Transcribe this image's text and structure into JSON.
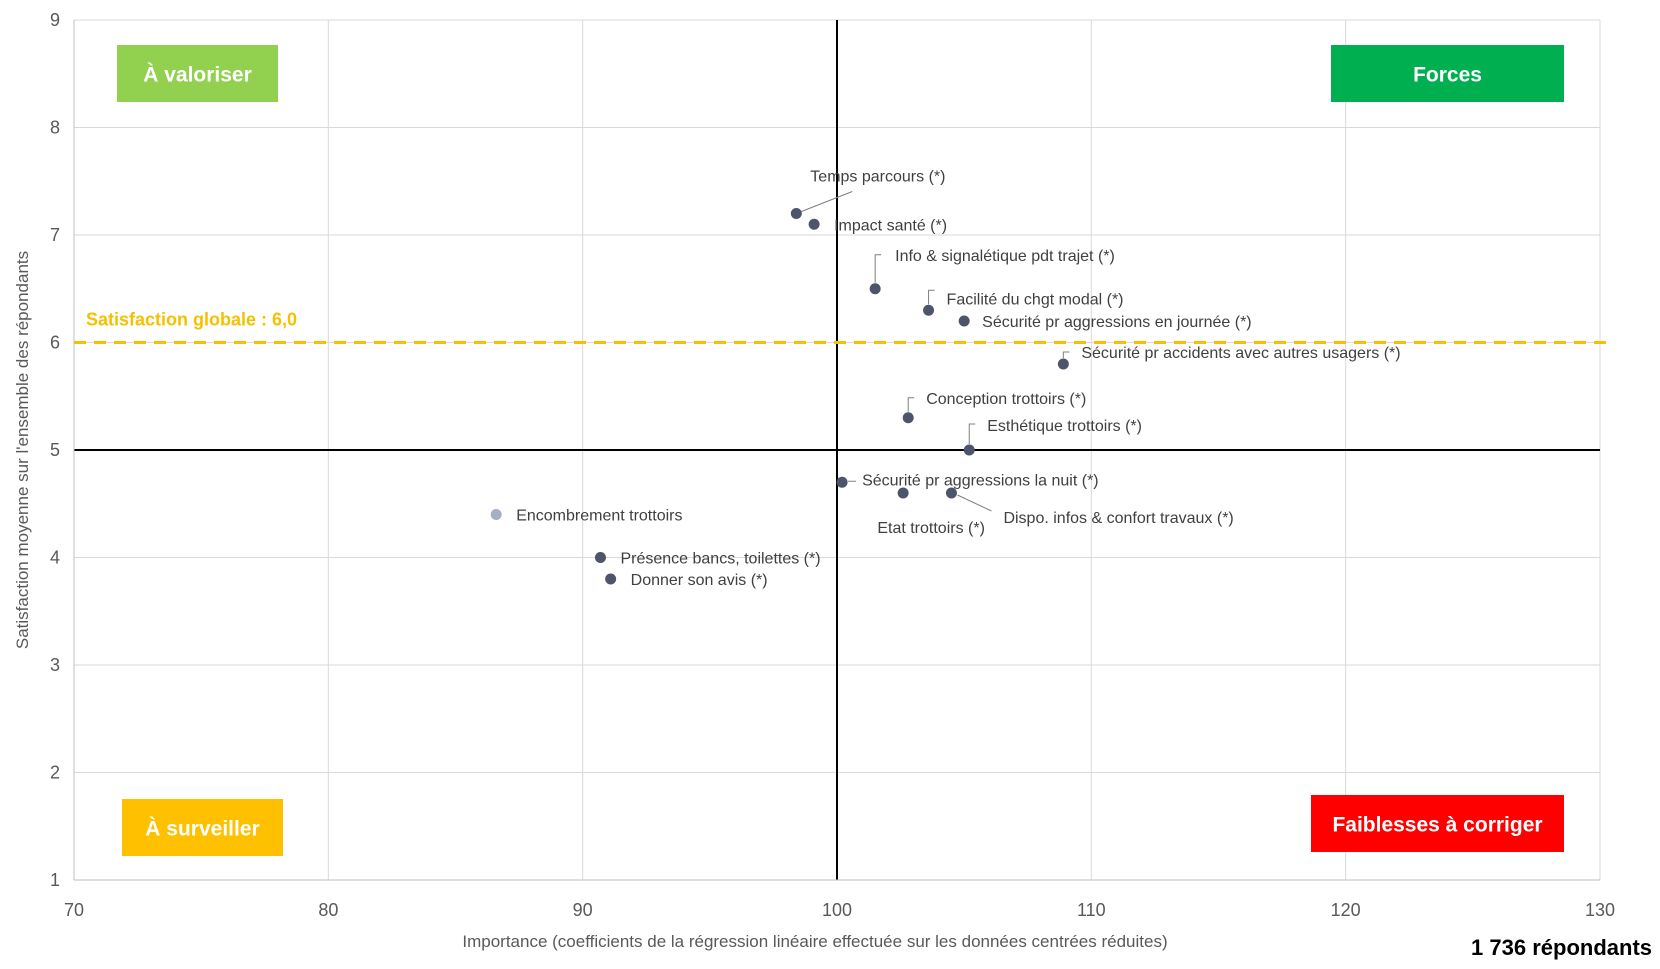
{
  "chart_data": {
    "type": "scatter",
    "xlabel": "Importance (coefficients de la régression linéaire effectuée sur les données centrées réduites)",
    "ylabel": "Satisfaction moyenne sur l'ensemble des répondants",
    "xlim": [
      70,
      130
    ],
    "ylim": [
      1,
      9
    ],
    "x_ticks": [
      "70",
      "80",
      "90",
      "100",
      "110",
      "120",
      "130"
    ],
    "y_ticks": [
      "1",
      "2",
      "3",
      "4",
      "5",
      "6",
      "7",
      "8",
      "9"
    ],
    "grid": true,
    "vertical_divider_x": 100,
    "horizontal_divider_y": 5,
    "reference_line": {
      "y": 6.0,
      "label": "Satisfaction globale : 6,0",
      "color": "#f5c000"
    },
    "point_color": "#4d546b",
    "highlight_point_color": "#a5b0c2",
    "points": [
      {
        "label": "Temps parcours (*)",
        "x": 98.4,
        "y": 7.2
      },
      {
        "label": "Impact santé (*)",
        "x": 99.1,
        "y": 7.1
      },
      {
        "label": "Info & signalétique pdt trajet  (*)",
        "x": 101.5,
        "y": 6.5
      },
      {
        "label": "Facilité du chgt modal (*)",
        "x": 103.6,
        "y": 6.3
      },
      {
        "label": "Sécurité pr aggressions en journée (*)",
        "x": 105.0,
        "y": 6.2
      },
      {
        "label": "Sécurité pr accidents avec autres usagers (*)",
        "x": 108.9,
        "y": 5.8
      },
      {
        "label": "Conception trottoirs (*)",
        "x": 102.8,
        "y": 5.3
      },
      {
        "label": "Esthétique trottoirs (*)",
        "x": 105.2,
        "y": 5.0
      },
      {
        "label": "Sécurité pr aggressions la nuit (*)",
        "x": 100.2,
        "y": 4.7
      },
      {
        "label": "Etat trottoirs (*)",
        "x": 102.6,
        "y": 4.6
      },
      {
        "label": "Dispo. infos & confort travaux (*)",
        "x": 104.5,
        "y": 4.6
      },
      {
        "label": "Encombrement trottoirs",
        "x": 86.6,
        "y": 4.4,
        "highlight": true
      },
      {
        "label": "Présence bancs, toilettes (*)",
        "x": 90.7,
        "y": 4.0
      },
      {
        "label": "Donner son avis (*)",
        "x": 91.1,
        "y": 3.8
      }
    ],
    "quadrants": [
      {
        "label": "À valoriser",
        "position": "top-left",
        "color": "#92d050"
      },
      {
        "label": "Forces",
        "position": "top-right",
        "color": "#00b050"
      },
      {
        "label": "À surveiller",
        "position": "bottom-left",
        "color": "#ffc000"
      },
      {
        "label": "Faiblesses à corriger",
        "position": "bottom-right",
        "color": "#ff0000"
      }
    ]
  },
  "footer": {
    "respondents": "1 736 répondants"
  }
}
